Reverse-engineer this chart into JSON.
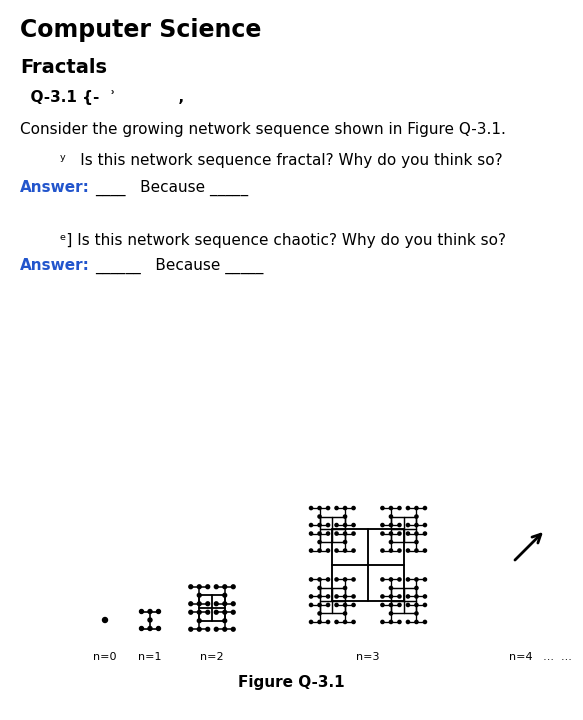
{
  "title": "Computer Science",
  "subtitle": "Fractals",
  "question_label": "  Q-3.1 {-  ʾ            ,",
  "body_text": "Consider the growing network sequence shown in Figure Q-3.1.",
  "q1_bullet": "ʸ   Is this network sequence fractal? Why do you think so?",
  "answer1_label": "Answer:",
  "answer1_rest": "____   Because _____",
  "q2_prefix": "ᵉ] Is this network sequence chaotic? Why do you think so?",
  "answer2_label": "Answer:",
  "answer2_rest": "______   Because _____",
  "figure_caption": "Figure Q-3.1",
  "answer_color": "#2255cc",
  "background_color": "#ffffff"
}
